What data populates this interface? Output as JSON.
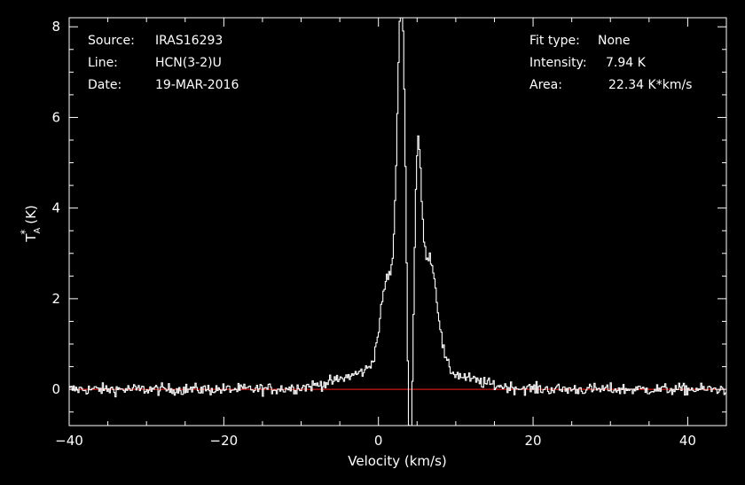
{
  "info_left": [
    {
      "key": "Source:",
      "value": "IRAS16293"
    },
    {
      "key": "Line:",
      "value": "HCN(3-2)U"
    },
    {
      "key": "Date:",
      "value": "19-MAR-2016"
    }
  ],
  "info_right": [
    {
      "key": "Fit type:",
      "value": "None"
    },
    {
      "key": "Intensity:",
      "value": "7.94 K"
    },
    {
      "key": "Area:",
      "value": "22.34 K*km/s"
    }
  ],
  "chart_data": {
    "type": "line",
    "xlabel": "Velocity (km/s)",
    "ylabel": "T",
    "ylabel_sup": "*",
    "ylabel_sub": "A",
    "ylabel_unit": "(K)",
    "xlim": [
      -40,
      45
    ],
    "ylim": [
      -0.8,
      8.2
    ],
    "xticks": [
      -40,
      -20,
      0,
      20,
      40
    ],
    "xtick_labels": [
      "-40",
      "-20",
      "0",
      "20",
      "40"
    ],
    "yticks": [
      0,
      2,
      4,
      6,
      8
    ],
    "ytick_labels": [
      "0",
      "2",
      "4",
      "6",
      "8"
    ],
    "baseline_y": 0,
    "colors": {
      "spectrum": "#ffffff",
      "baseline": "#d01818",
      "axes": "#ffffff"
    },
    "series": [
      {
        "step": 0.15,
        "x_start": -40,
        "x_end": 45,
        "noise_amplitude": 0.12,
        "components": [
          {
            "center": 3.0,
            "peak": 7.9,
            "width": 0.55
          },
          {
            "center": 5.1,
            "peak": 4.1,
            "width": 0.45
          },
          {
            "center": 1.2,
            "peak": 1.9,
            "width": 0.9
          },
          {
            "center": 6.6,
            "peak": 2.4,
            "width": 1.0
          },
          {
            "center": 3.5,
            "peak": 0.6,
            "width": 6.0
          },
          {
            "center": 4.05,
            "peak": -3.6,
            "width": 0.35
          }
        ]
      }
    ]
  }
}
